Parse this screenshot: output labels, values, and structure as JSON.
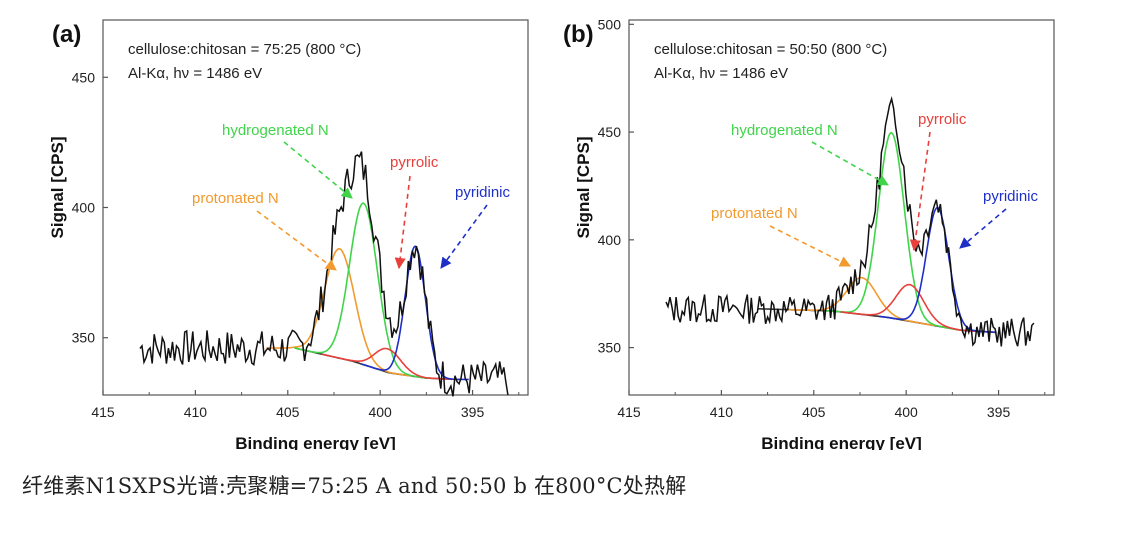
{
  "chart_data": [
    {
      "panel_label": "(a)",
      "type": "line",
      "annotation_lines": [
        "cellulose:chitosan = 75:25 (800 °C)",
        "Al-Kα, hν = 1486 eV"
      ],
      "xlabel": "Binding energy [eV]",
      "ylabel": "Signal [CPS]",
      "xlim": [
        415,
        392
      ],
      "ylim": [
        328,
        472
      ],
      "x_ticks": [
        415,
        410,
        405,
        400,
        395
      ],
      "y_ticks": [
        350,
        400,
        450
      ],
      "noise_seed": 7,
      "series": [
        {
          "name": "protonated N",
          "color": "#f29a2e",
          "center": 402.2,
          "height": 42,
          "sigma": 0.8
        },
        {
          "name": "hydrogenated N",
          "color": "#3fd44a",
          "center": 400.9,
          "height": 62,
          "sigma": 0.75
        },
        {
          "name": "pyrrolic",
          "color": "#e8403a",
          "center": 399.6,
          "height": 9,
          "sigma": 0.7
        },
        {
          "name": "pyridinic",
          "color": "#1e2fc8",
          "center": 398.1,
          "height": 50,
          "sigma": 0.55
        }
      ],
      "background": {
        "name": "background",
        "color": "#333333",
        "points": [
          [
            404.6,
            346
          ],
          [
            401.5,
            341
          ],
          [
            399.5,
            336.5
          ],
          [
            397.5,
            334.5
          ],
          [
            396,
            334
          ]
        ]
      },
      "raw_data": {
        "name": "measured",
        "color": "#111111",
        "range": [
          413,
          393
        ],
        "baseline": 346,
        "noise_amp": 7
      },
      "peak_labels": [
        {
          "text": "protonated N",
          "color": "#f29a2e"
        },
        {
          "text": "hydrogenated N",
          "color": "#3fd44a"
        },
        {
          "text": "pyrrolic",
          "color": "#e8403a"
        },
        {
          "text": "pyridinic",
          "color": "#1e2fc8"
        }
      ]
    },
    {
      "panel_label": "(b)",
      "type": "line",
      "annotation_lines": [
        "cellulose:chitosan = 50:50 (800 °C)",
        "Al-Kα, hν = 1486 eV"
      ],
      "xlabel": "Binding energy [eV]",
      "ylabel": "Signal [CPS]",
      "xlim": [
        415,
        392
      ],
      "ylim": [
        328,
        502
      ],
      "x_ticks": [
        415,
        410,
        405,
        400,
        395
      ],
      "y_ticks": [
        350,
        400,
        450,
        500
      ],
      "noise_seed": 13,
      "series": [
        {
          "name": "protonated N",
          "color": "#f29a2e",
          "center": 402.4,
          "height": 17,
          "sigma": 0.8
        },
        {
          "name": "hydrogenated N",
          "color": "#3fd44a",
          "center": 400.8,
          "height": 86,
          "sigma": 0.7
        },
        {
          "name": "pyrrolic",
          "color": "#e8403a",
          "center": 399.8,
          "height": 17,
          "sigma": 0.75
        },
        {
          "name": "pyridinic",
          "color": "#1e2fc8",
          "center": 398.3,
          "height": 55,
          "sigma": 0.6
        }
      ],
      "background": {
        "name": "background",
        "color": "#333333",
        "points": [
          [
            408,
            368
          ],
          [
            404,
            367
          ],
          [
            401,
            364
          ],
          [
            399,
            361
          ],
          [
            397,
            358
          ],
          [
            395,
            357
          ]
        ]
      },
      "raw_data": {
        "name": "measured",
        "color": "#111111",
        "range": [
          413,
          393
        ],
        "baseline": 368,
        "noise_amp": 7
      },
      "peak_labels": [
        {
          "text": "protonated N",
          "color": "#f29a2e"
        },
        {
          "text": "hydrogenated N",
          "color": "#3fd44a"
        },
        {
          "text": "pyrrolic",
          "color": "#e8403a"
        },
        {
          "text": "pyridinic",
          "color": "#1e2fc8"
        }
      ]
    }
  ],
  "caption": "纤维素N1SXPS光谱:壳聚糖=75:25 A and 50:50 b 在800°C处热解"
}
